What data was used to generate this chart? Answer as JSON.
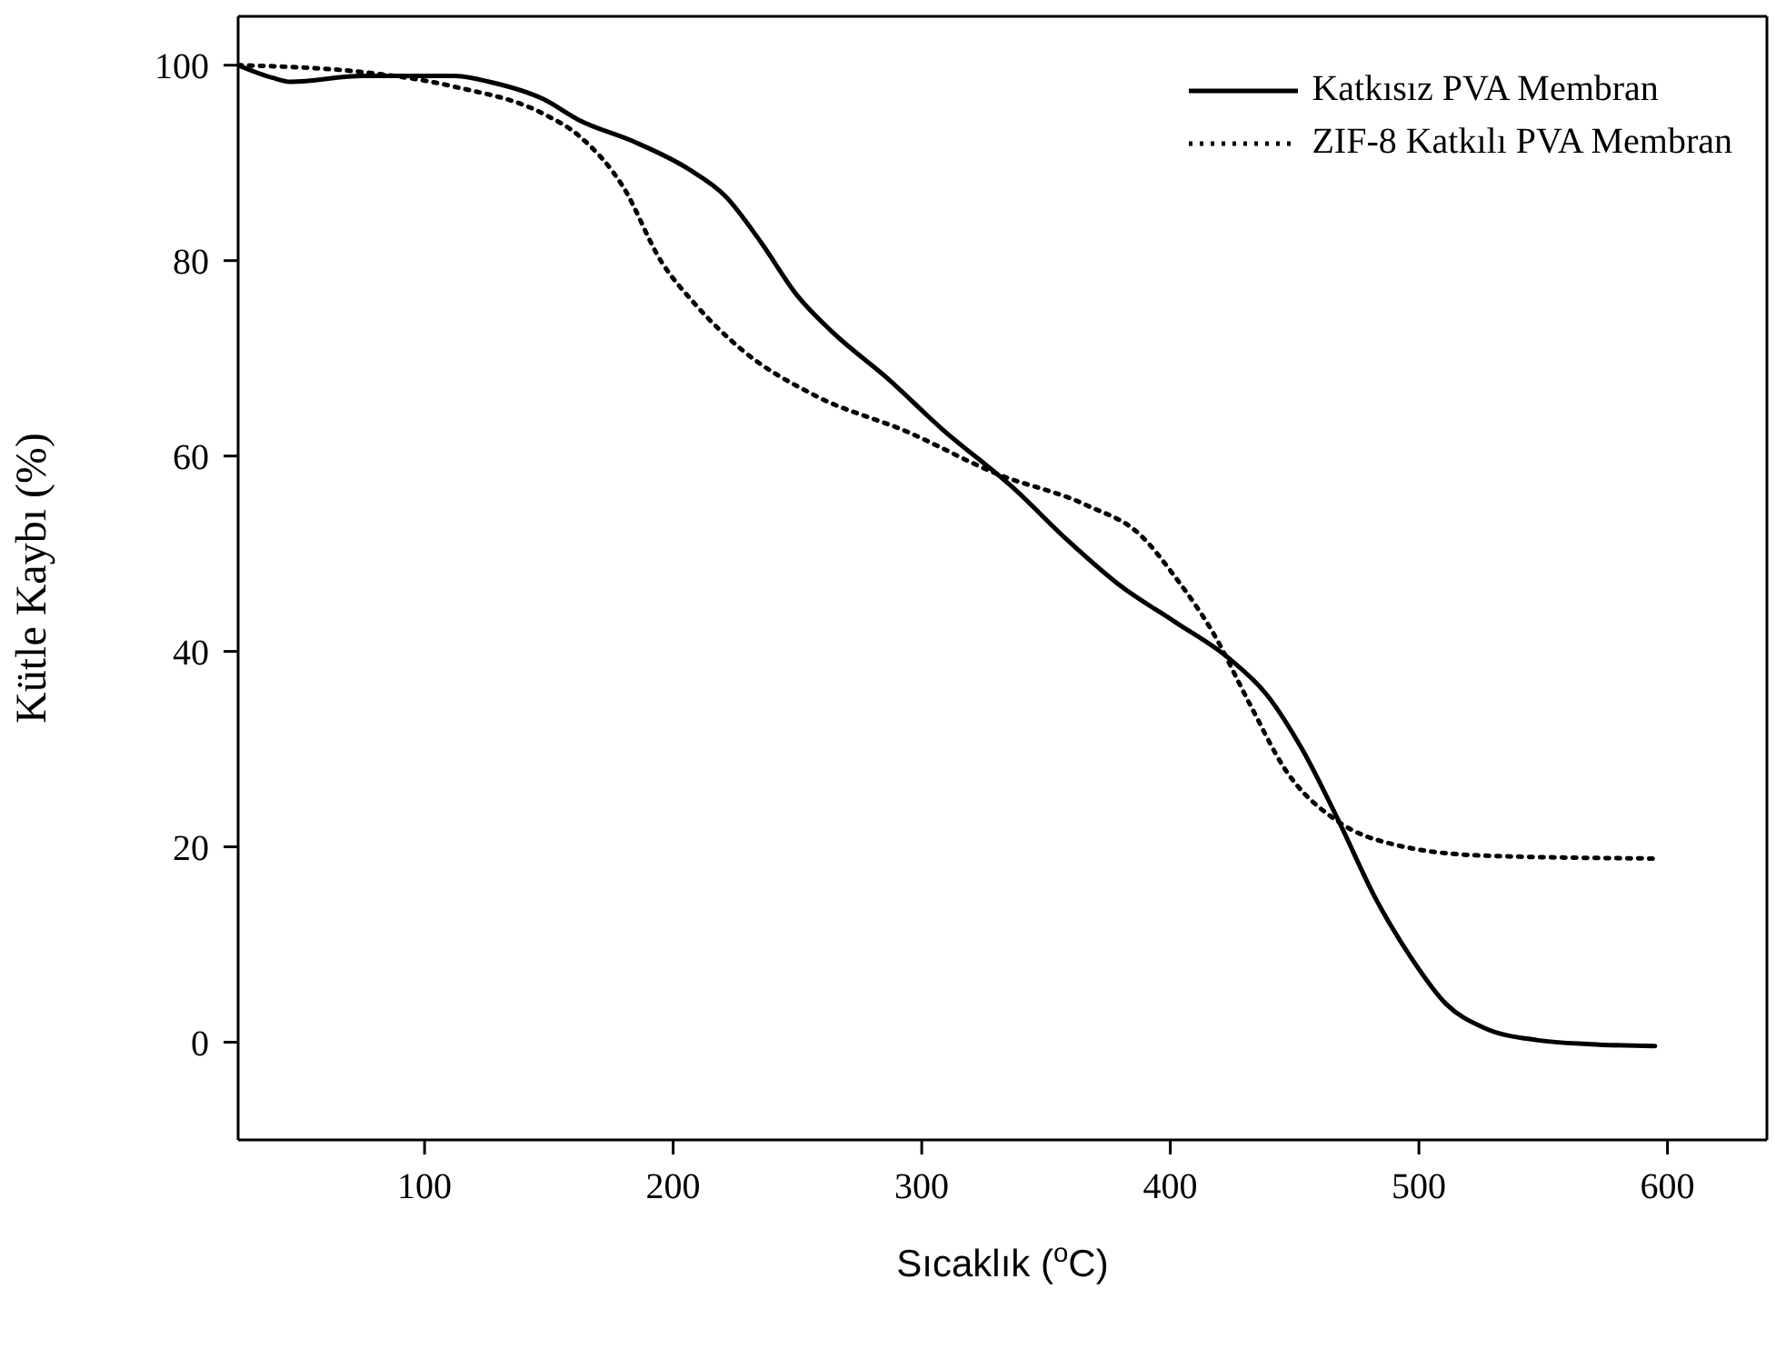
{
  "chart_data": {
    "type": "line",
    "xlabel": "Sıcaklık ($^{o}$C)",
    "ylabel": "Kütle Kaybı (%)",
    "xlim": [
      25,
      640
    ],
    "xticks": [
      100,
      200,
      300,
      400,
      500,
      600
    ],
    "ylim": [
      -10,
      105
    ],
    "yticks": [
      0,
      20,
      40,
      60,
      80,
      100
    ],
    "grid": false,
    "legend": "top right",
    "marker": "none",
    "series": [
      {
        "name": "Katkısız PVA  Membran",
        "color": "#000000",
        "line_style": "solid",
        "x": [
          25,
          39,
          46,
          75,
          112,
          126,
          148,
          162,
          184,
          206,
          221,
          235,
          250,
          264,
          286,
          308,
          337,
          359,
          380,
          402,
          424,
          439,
          453,
          468,
          482,
          497,
          511,
          526,
          548,
          569,
          595
        ],
        "values": [
          100,
          98.7,
          98.3,
          98.9,
          98.9,
          98.3,
          96.5,
          94.4,
          92.2,
          89.4,
          86.6,
          82,
          76.4,
          72.7,
          68,
          62.8,
          56.7,
          51.3,
          46.7,
          43,
          39.2,
          35.5,
          30,
          22.5,
          15,
          8.6,
          3.9,
          1.5,
          0.2,
          -0.2,
          -0.4
        ]
      },
      {
        "name": "ZIF-8 Katkılı PVA Membran",
        "color": "#000000",
        "line_style": "dotted",
        "x": [
          25,
          75,
          112,
          148,
          162,
          180,
          195,
          209,
          228,
          257,
          294,
          330,
          366,
          388,
          402,
          417,
          432,
          446,
          468,
          489,
          526,
          595
        ],
        "values": [
          100,
          99.3,
          97.8,
          95,
          92.8,
          87.5,
          80,
          75.5,
          70.8,
          66.2,
          62.5,
          58.2,
          55,
          51.9,
          47.6,
          42,
          34.6,
          28,
          22.5,
          20.3,
          19.1,
          18.8
        ]
      }
    ]
  }
}
